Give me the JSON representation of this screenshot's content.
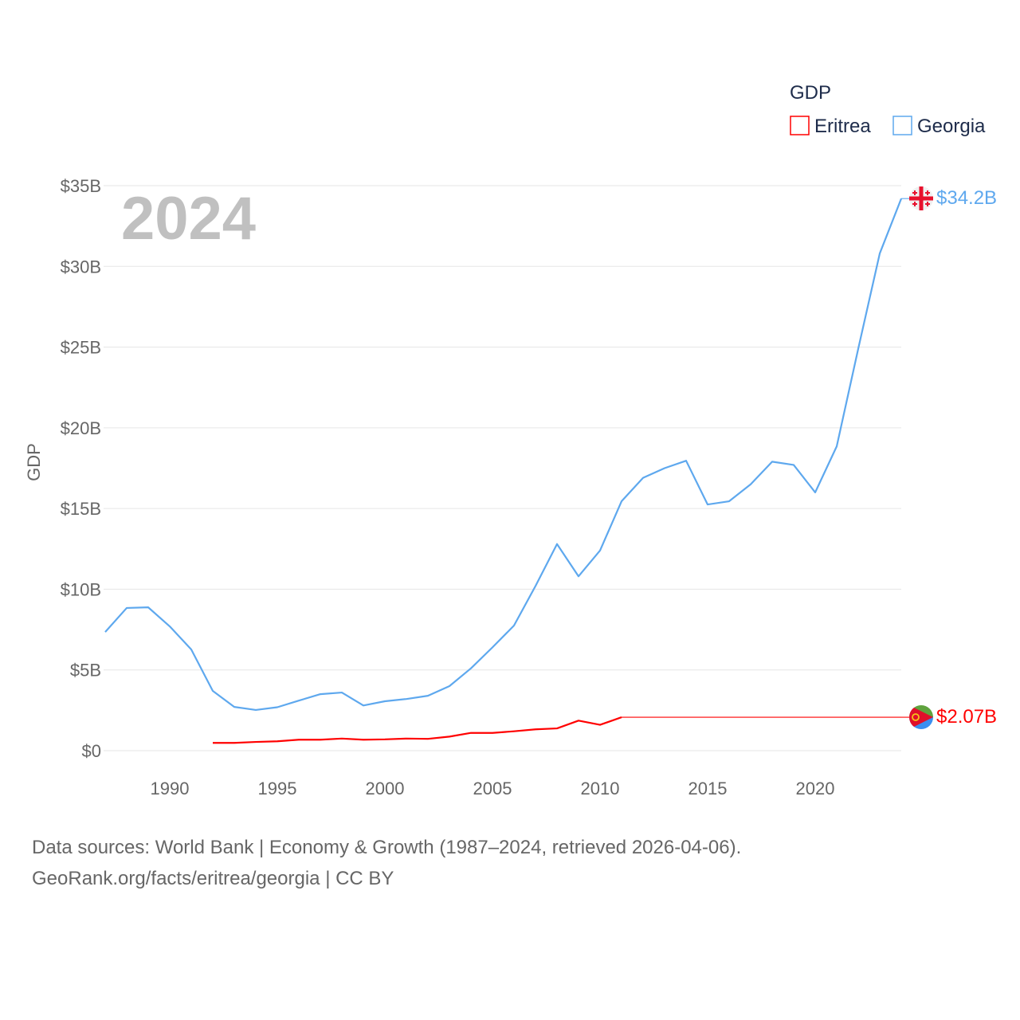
{
  "chart_data": {
    "type": "line",
    "title": "",
    "year_watermark": "2024",
    "xlabel": "",
    "ylabel": "GDP",
    "legend": {
      "title": "GDP",
      "placement": "top-right",
      "entries": [
        "Eritrea",
        "Georgia"
      ]
    },
    "xlim": [
      1987,
      2024
    ],
    "ylim": [
      0,
      35
    ],
    "x_ticks": [
      1990,
      1995,
      2000,
      2005,
      2010,
      2015,
      2020
    ],
    "y_ticks": [
      0,
      5,
      10,
      15,
      20,
      25,
      30,
      35
    ],
    "y_tick_labels": [
      "$0",
      "$5B",
      "$10B",
      "$15B",
      "$20B",
      "$25B",
      "$30B",
      "$35B"
    ],
    "grid": true,
    "series": [
      {
        "name": "Eritrea",
        "color": "#ff0000",
        "end_label": "$2.07B",
        "x": [
          1992,
          1993,
          1994,
          1995,
          1996,
          1997,
          1998,
          1999,
          2000,
          2001,
          2002,
          2003,
          2004,
          2005,
          2006,
          2007,
          2008,
          2009,
          2010,
          2011
        ],
        "values": [
          0.48,
          0.48,
          0.54,
          0.58,
          0.68,
          0.68,
          0.75,
          0.68,
          0.7,
          0.75,
          0.73,
          0.87,
          1.1,
          1.1,
          1.2,
          1.32,
          1.38,
          1.86,
          1.6,
          2.07
        ],
        "carried_forward_to": 2024
      },
      {
        "name": "Georgia",
        "color": "#5ea8ee",
        "end_label": "$34.2B",
        "x": [
          1987,
          1988,
          1989,
          1990,
          1991,
          1992,
          1993,
          1994,
          1995,
          1996,
          1997,
          1998,
          1999,
          2000,
          2001,
          2002,
          2003,
          2004,
          2005,
          2006,
          2007,
          2008,
          2009,
          2010,
          2011,
          2012,
          2013,
          2014,
          2015,
          2016,
          2017,
          2018,
          2019,
          2020,
          2021,
          2022,
          2023,
          2024
        ],
        "values": [
          7.35,
          8.84,
          8.88,
          7.7,
          6.27,
          3.7,
          2.71,
          2.52,
          2.69,
          3.1,
          3.5,
          3.6,
          2.8,
          3.06,
          3.2,
          3.4,
          4.0,
          5.1,
          6.4,
          7.75,
          10.2,
          12.8,
          10.8,
          12.4,
          15.45,
          16.9,
          17.5,
          17.96,
          15.25,
          15.45,
          16.5,
          17.9,
          17.7,
          16.0,
          18.85,
          24.9,
          30.8,
          34.2
        ]
      }
    ]
  },
  "footer": {
    "line1": "Data sources: World Bank | Economy & Growth (1987–2024, retrieved 2026-04-06).",
    "line2": "GeoRank.org/facts/eritrea/georgia | CC BY"
  }
}
